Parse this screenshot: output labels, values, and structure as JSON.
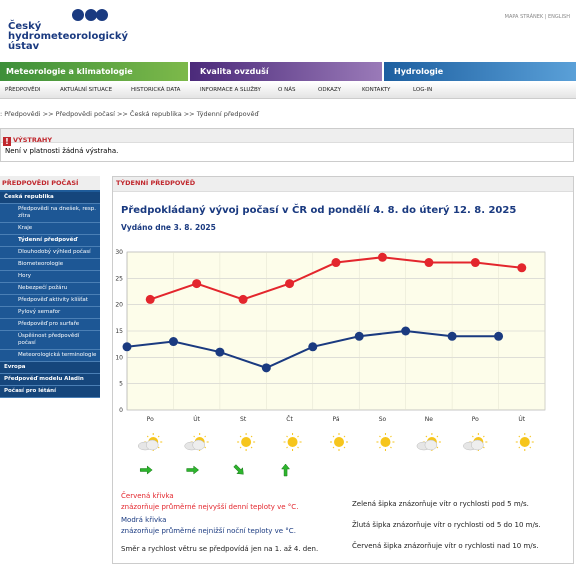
{
  "header": {
    "logo": [
      "Český",
      "hydrometeorologický",
      "ústav"
    ],
    "top_links": "MAPA STRÁNEK | ENGLISH"
  },
  "sections": [
    "Meteorologie a klimatologie",
    "Kvalita ovzduší",
    "Hydrologie"
  ],
  "nav": [
    "PŘEDPOVĚDI",
    "AKTUÁLNÍ SITUACE",
    "HISTORICKÁ DATA",
    "INFORMACE A SLUŽBY",
    "O NÁS",
    "ODKAZY",
    "KONTAKTY",
    "LOG-IN"
  ],
  "breadcrumb": ": Předpovědi >> Předpovědi počasí >> Česká republika >> Týdenní předpověď",
  "warnings": {
    "title": "VÝSTRAHY",
    "text": "Není v platnosti žádná výstraha."
  },
  "sidebar": {
    "title": "PŘEDPOVĚDI POČASÍ",
    "items": [
      "Česká republika",
      "Předpovědi na dnešek, resp. zítra",
      "Kraje",
      "Týdenní předpověď",
      "Dlouhodobý výhled počasí",
      "Biometeorologie",
      "Hory",
      "Nebezpečí požáru",
      "Předpověď aktivity klíšťat",
      "Pylový semafor",
      "Předpověď pro surfaře",
      "Úspěšnost předpovědí počasí",
      "Meteorologická terminologie",
      "Evropa",
      "Předpověď modelu Aladin",
      "Počasí pro létání"
    ]
  },
  "panel_title": "TÝDENNÍ PŘEDPOVĚĎ",
  "chart_data": {
    "type": "line",
    "title": "Předpokládaný vývoj počasí v ČR od pondělí 4. 8. do úterý 12. 8. 2025",
    "subtitle": "Vydáno dne 3. 8. 2025",
    "categories": [
      "Po",
      "Út",
      "St",
      "Čt",
      "Pá",
      "So",
      "Ne",
      "Po",
      "Út"
    ],
    "series": [
      {
        "name": "Červená křivka",
        "color": "#e3262d",
        "values": [
          21,
          24,
          21,
          24,
          28,
          29,
          28,
          28,
          27
        ]
      },
      {
        "name": "Modrá křivka",
        "color": "#1a3a80",
        "values": [
          12,
          13,
          11,
          8,
          12,
          14,
          15,
          14,
          14
        ]
      }
    ],
    "ylim": [
      0,
      30
    ],
    "yticks": [
      0,
      5,
      10,
      15,
      20,
      25,
      30
    ],
    "grid": true,
    "notes": [
      "znázorňuje průměrné nejvyšší denní teploty ve °C.",
      "znázorňuje průměrné nejnižší noční teploty ve °C.",
      "Směr a rychlost větru se předpovídá jen na 1. až 4. den."
    ],
    "wind_notes": [
      "Zelená šipka znázorňuje vítr o rychlosti pod 5 m/s.",
      "Žlutá šipka znázorňuje vítr o rychlosti od 5 do 10 m/s.",
      "Červená šipka znázorňuje vítr o rychlosti nad 10 m/s."
    ]
  }
}
